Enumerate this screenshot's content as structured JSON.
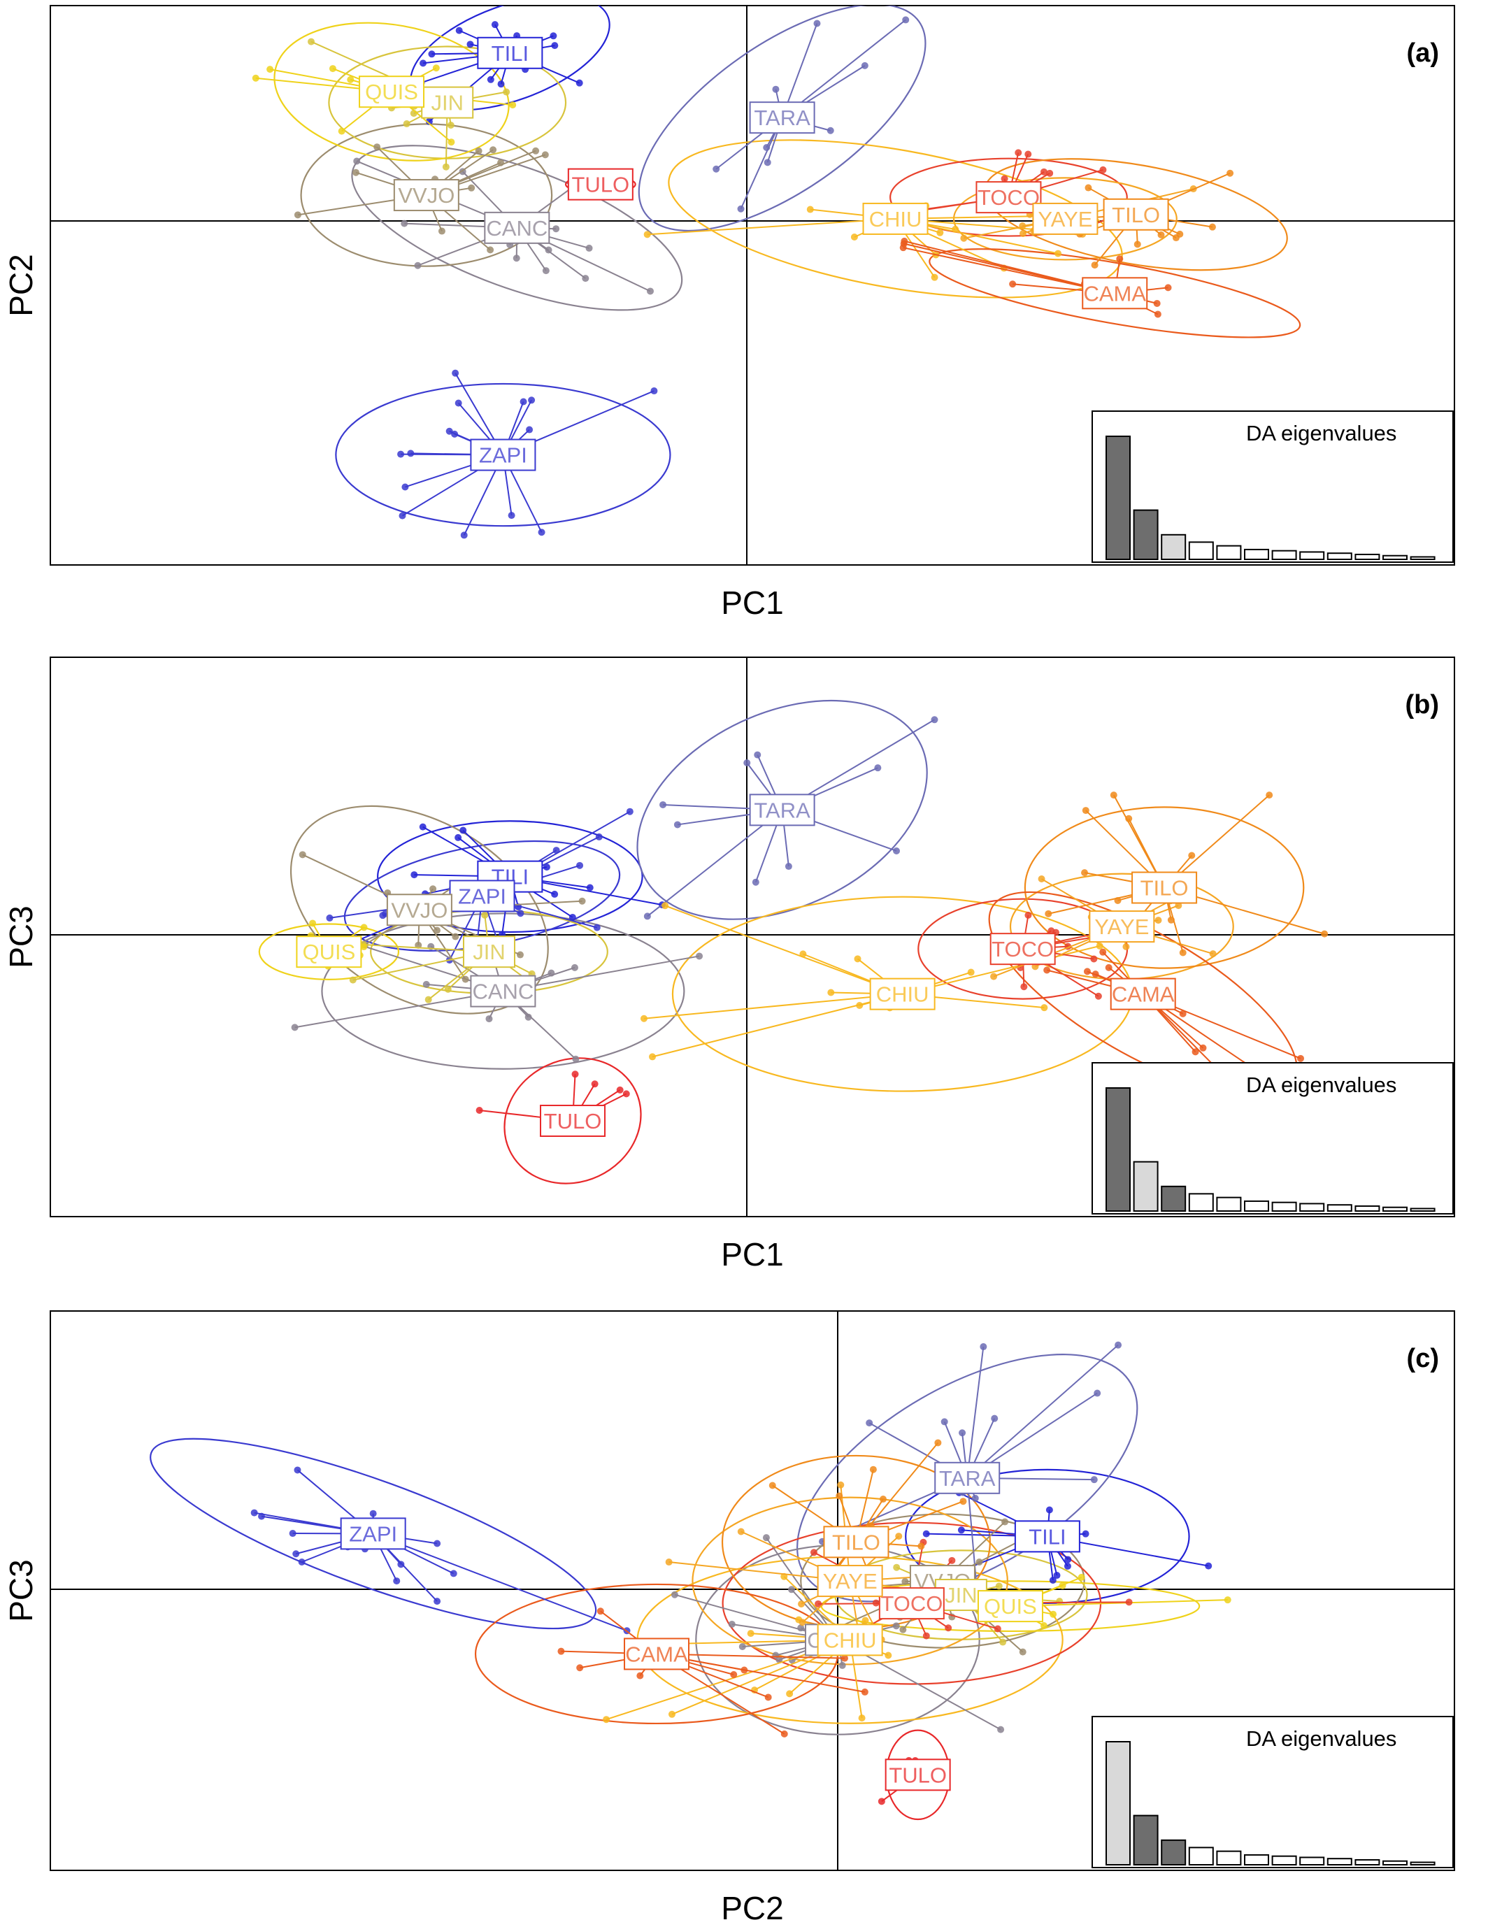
{
  "group_colors": {
    "TILI": "#2323d6",
    "ZAPI": "#3a3ad0",
    "TARA": "#6b6bb4",
    "CANC": "#8a8290",
    "VVJO": "#9c8c6e",
    "QUIS": "#efd21a",
    "JIN": "#d8c43c",
    "TULO": "#e8282a",
    "TOCO": "#e8412c",
    "CAMA": "#ea5a1c",
    "TILO": "#f08a1a",
    "YAYE": "#f5a623",
    "CHIU": "#f8b820"
  },
  "chart_data": [
    {
      "type": "scatter",
      "panel_label": "(a)",
      "xlabel": "PC1",
      "ylabel": "PC2",
      "xlim": [
        -10,
        10
      ],
      "ylim": [
        -10,
        10
      ],
      "inset": {
        "title": "DA eigenvalues",
        "values": [
          100,
          40,
          20,
          14,
          11,
          8,
          7,
          6,
          5,
          4,
          3,
          2
        ],
        "retained": [
          0,
          1
        ]
      },
      "series": [
        {
          "name": "TILI",
          "label": "TILI",
          "center": [
            -3.4,
            7.8
          ],
          "spread": [
            1.5,
            2.2
          ],
          "angle": -20,
          "n": 16
        },
        {
          "name": "ZAPI",
          "label": "ZAPI",
          "center": [
            -3.5,
            -6.8
          ],
          "spread": [
            2.4,
            3.3
          ],
          "angle": 0,
          "n": 16
        },
        {
          "name": "TARA",
          "label": "TARA",
          "center": [
            0.5,
            4.8
          ],
          "spread": [
            2.4,
            3.4
          ],
          "angle": -35,
          "n": 10
        },
        {
          "name": "CANC",
          "label": "CANC",
          "center": [
            -3.3,
            -0.2
          ],
          "spread": [
            2.5,
            2.8
          ],
          "angle": 20,
          "n": 14
        },
        {
          "name": "VVJO",
          "label": "VVJO",
          "center": [
            -4.6,
            1.2
          ],
          "spread": [
            1.8,
            3.3
          ],
          "angle": 0,
          "n": 12
        },
        {
          "name": "JIN",
          "label": "JIN",
          "center": [
            -4.3,
            5.5
          ],
          "spread": [
            1.7,
            2.6
          ],
          "angle": 0,
          "n": 10
        },
        {
          "name": "QUIS",
          "label": "QUIS",
          "center": [
            -5.1,
            6.0
          ],
          "spread": [
            1.7,
            3.1
          ],
          "angle": 10,
          "n": 10
        },
        {
          "name": "TULO",
          "label": "TULO",
          "center": [
            -2.1,
            1.7
          ],
          "spread": [
            0.5,
            0.4
          ],
          "angle": 0,
          "n": 4
        },
        {
          "name": "CHIU",
          "label": "CHIU",
          "center": [
            2.1,
            0.1
          ],
          "spread": [
            3.3,
            3.2
          ],
          "angle": 10,
          "n": 12
        },
        {
          "name": "TOCO",
          "label": "TOCO",
          "center": [
            3.7,
            1.1
          ],
          "spread": [
            1.7,
            1.8
          ],
          "angle": 0,
          "n": 10
        },
        {
          "name": "YAYE",
          "label": "YAYE",
          "center": [
            4.5,
            0.1
          ],
          "spread": [
            1.6,
            1.9
          ],
          "angle": 0,
          "n": 10
        },
        {
          "name": "TILO",
          "label": "TILO",
          "center": [
            5.5,
            0.3
          ],
          "spread": [
            2.2,
            2.3
          ],
          "angle": 10,
          "n": 12
        },
        {
          "name": "CAMA",
          "label": "CAMA",
          "center": [
            5.2,
            -2.1
          ],
          "spread": [
            2.7,
            1.4
          ],
          "angle": 10,
          "n": 12
        }
      ]
    },
    {
      "type": "scatter",
      "panel_label": "(b)",
      "xlabel": "PC1",
      "ylabel": "PC3",
      "xlim": [
        -10,
        10
      ],
      "ylim": [
        -10,
        10
      ],
      "inset": {
        "title": "DA eigenvalues",
        "values": [
          100,
          40,
          20,
          14,
          11,
          8,
          7,
          6,
          5,
          4,
          3,
          2
        ],
        "retained": [
          0,
          2
        ]
      },
      "series": [
        {
          "name": "TILI",
          "label": "TILI",
          "center": [
            -3.4,
            2.1
          ],
          "spread": [
            1.9,
            2.0
          ],
          "angle": 0,
          "n": 16
        },
        {
          "name": "ZAPI",
          "label": "ZAPI",
          "center": [
            -3.8,
            1.4
          ],
          "spread": [
            2.0,
            1.8
          ],
          "angle": -10,
          "n": 16
        },
        {
          "name": "TARA",
          "label": "TARA",
          "center": [
            0.5,
            4.5
          ],
          "spread": [
            2.2,
            3.5
          ],
          "angle": -25,
          "n": 10
        },
        {
          "name": "CANC",
          "label": "CANC",
          "center": [
            -3.5,
            -2.0
          ],
          "spread": [
            2.6,
            2.8
          ],
          "angle": 0,
          "n": 12
        },
        {
          "name": "VVJO",
          "label": "VVJO",
          "center": [
            -4.7,
            0.9
          ],
          "spread": [
            2.0,
            3.2
          ],
          "angle": 30,
          "n": 12
        },
        {
          "name": "JIN",
          "label": "JIN",
          "center": [
            -3.7,
            -0.6
          ],
          "spread": [
            1.7,
            1.5
          ],
          "angle": 0,
          "n": 10
        },
        {
          "name": "QUIS",
          "label": "QUIS",
          "center": [
            -6.0,
            -0.6
          ],
          "spread": [
            1.0,
            1.0
          ],
          "angle": 0,
          "n": 8
        },
        {
          "name": "TULO",
          "label": "TULO",
          "center": [
            -2.5,
            -6.6
          ],
          "spread": [
            1.0,
            2.2
          ],
          "angle": -25,
          "n": 5
        },
        {
          "name": "CHIU",
          "label": "CHIU",
          "center": [
            2.2,
            -2.1
          ],
          "spread": [
            3.3,
            3.5
          ],
          "angle": 0,
          "n": 12
        },
        {
          "name": "TOCO",
          "label": "TOCO",
          "center": [
            3.9,
            -0.5
          ],
          "spread": [
            1.5,
            1.8
          ],
          "angle": 0,
          "n": 10
        },
        {
          "name": "YAYE",
          "label": "YAYE",
          "center": [
            5.3,
            0.3
          ],
          "spread": [
            1.6,
            1.9
          ],
          "angle": 0,
          "n": 10
        },
        {
          "name": "TILO",
          "label": "TILO",
          "center": [
            5.9,
            1.7
          ],
          "spread": [
            2.0,
            2.9
          ],
          "angle": 0,
          "n": 12
        },
        {
          "name": "CAMA",
          "label": "CAMA",
          "center": [
            5.6,
            -2.1
          ],
          "spread": [
            2.5,
            2.2
          ],
          "angle": 30,
          "n": 12
        }
      ]
    },
    {
      "type": "scatter",
      "panel_label": "(c)",
      "xlabel": "PC2",
      "ylabel": "PC3",
      "xlim": [
        -10,
        10
      ],
      "ylim": [
        -10,
        10
      ],
      "inset": {
        "title": "DA eigenvalues",
        "values": [
          100,
          40,
          20,
          14,
          11,
          8,
          7,
          6,
          5,
          4,
          3,
          2
        ],
        "retained": [
          1,
          2
        ]
      },
      "series": [
        {
          "name": "TILI",
          "label": "TILI",
          "center": [
            3.4,
            1.9
          ],
          "spread": [
            1.8,
            2.4
          ],
          "angle": 0,
          "n": 12
        },
        {
          "name": "ZAPI",
          "label": "ZAPI",
          "center": [
            -5.9,
            2.0
          ],
          "spread": [
            3.0,
            1.9
          ],
          "angle": 20,
          "n": 16
        },
        {
          "name": "TARA",
          "label": "TARA",
          "center": [
            2.1,
            4.0
          ],
          "spread": [
            2.4,
            3.3
          ],
          "angle": -30,
          "n": 12
        },
        {
          "name": "CANC",
          "label": "CANC",
          "center": [
            0.0,
            -1.8
          ],
          "spread": [
            1.8,
            3.4
          ],
          "angle": 0,
          "n": 12
        },
        {
          "name": "VVJO",
          "label": "VVJO",
          "center": [
            1.7,
            0.3
          ],
          "spread": [
            1.8,
            2.4
          ],
          "angle": 0,
          "n": 12
        },
        {
          "name": "JIN",
          "label": "JIN",
          "center": [
            2.0,
            -0.2
          ],
          "spread": [
            1.6,
            1.6
          ],
          "angle": 0,
          "n": 10
        },
        {
          "name": "QUIS",
          "label": "QUIS",
          "center": [
            2.8,
            -0.6
          ],
          "spread": [
            2.4,
            0.9
          ],
          "angle": 0,
          "n": 10
        },
        {
          "name": "TULO",
          "label": "TULO",
          "center": [
            1.3,
            -6.6
          ],
          "spread": [
            0.4,
            1.6
          ],
          "angle": 0,
          "n": 4
        },
        {
          "name": "CHIU",
          "label": "CHIU",
          "center": [
            0.2,
            -1.8
          ],
          "spread": [
            2.7,
            3.0
          ],
          "angle": 0,
          "n": 12
        },
        {
          "name": "TOCO",
          "label": "TOCO",
          "center": [
            1.2,
            -0.5
          ],
          "spread": [
            2.4,
            2.9
          ],
          "angle": 0,
          "n": 12
        },
        {
          "name": "YAYE",
          "label": "YAYE",
          "center": [
            0.2,
            0.3
          ],
          "spread": [
            2.0,
            3.0
          ],
          "angle": 0,
          "n": 12
        },
        {
          "name": "TILO",
          "label": "TILO",
          "center": [
            0.3,
            1.7
          ],
          "spread": [
            1.7,
            3.1
          ],
          "angle": 0,
          "n": 12
        },
        {
          "name": "CAMA",
          "label": "CAMA",
          "center": [
            -2.3,
            -2.3
          ],
          "spread": [
            2.3,
            2.5
          ],
          "angle": 0,
          "n": 12
        }
      ]
    }
  ]
}
